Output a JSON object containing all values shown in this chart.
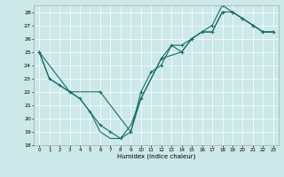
{
  "title": "",
  "xlabel": "Humidex (Indice chaleur)",
  "bg_color": "#cce8e8",
  "line_color": "#1a6b6b",
  "grid_color": "#ffffff",
  "xlim": [
    -0.5,
    23.5
  ],
  "ylim": [
    18,
    28.5
  ],
  "yticks": [
    18,
    19,
    20,
    21,
    22,
    23,
    24,
    25,
    26,
    27,
    28
  ],
  "xticks": [
    0,
    1,
    2,
    3,
    4,
    5,
    6,
    7,
    8,
    9,
    10,
    11,
    12,
    13,
    14,
    15,
    16,
    17,
    18,
    19,
    20,
    21,
    22,
    23
  ],
  "series1": {
    "x": [
      0,
      1,
      2,
      3,
      4,
      5,
      6,
      7,
      8,
      9,
      10,
      11,
      12,
      13,
      14,
      15,
      16,
      17,
      18,
      19,
      20,
      21,
      22,
      23
    ],
    "y": [
      25,
      23,
      22.5,
      22,
      21.5,
      20.5,
      19.0,
      18.5,
      18.5,
      19.5,
      21.5,
      23.0,
      24.5,
      25.5,
      25.0,
      26.0,
      26.5,
      26.5,
      28.0,
      28.0,
      27.5,
      27.0,
      26.5,
      26.5
    ]
  },
  "series2": {
    "x": [
      0,
      1,
      2,
      3,
      4,
      5,
      6,
      7,
      8,
      9,
      10,
      11,
      12,
      13,
      14,
      15,
      16,
      17,
      18,
      19,
      20,
      21,
      22,
      23
    ],
    "y": [
      25,
      23,
      22.5,
      22,
      21.5,
      20.5,
      19.5,
      19.0,
      18.5,
      19.0,
      22.0,
      23.5,
      24.0,
      25.5,
      25.5,
      26.0,
      26.5,
      27.0,
      28.5,
      28.0,
      27.5,
      27.0,
      26.5,
      26.5
    ]
  },
  "series3": {
    "x": [
      0,
      3,
      6,
      9,
      10,
      12,
      14,
      15,
      16,
      17,
      18,
      19,
      20,
      21,
      22,
      23
    ],
    "y": [
      25,
      22,
      22,
      19,
      21.5,
      24.5,
      25.0,
      26.0,
      26.5,
      26.5,
      28.0,
      28.0,
      27.5,
      27.0,
      26.5,
      26.5
    ]
  }
}
